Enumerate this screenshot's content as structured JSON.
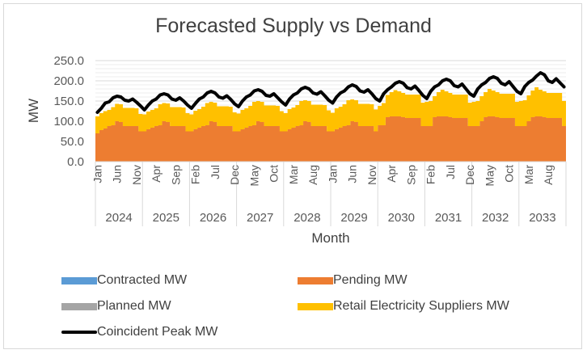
{
  "chart_data": {
    "type": "area",
    "title": "Forecasted Supply vs Demand",
    "xlabel": "Month",
    "ylabel": "MW",
    "ylim": [
      0,
      250
    ],
    "yticks": [
      "0.0",
      "50.0",
      "100.0",
      "150.0",
      "200.0",
      "250.0"
    ],
    "grid": true,
    "legend_position": "bottom",
    "years": [
      "2024",
      "2025",
      "2026",
      "2027",
      "2028",
      "2029",
      "2030",
      "2031",
      "2032",
      "2033"
    ],
    "month_tick_labels": [
      "Jan",
      "Jun",
      "Nov",
      "Apr",
      "Sep",
      "Feb",
      "Jul",
      "Dec",
      "May",
      "Oct",
      "Mar",
      "Aug",
      "Jan",
      "Jun",
      "Nov",
      "Apr",
      "Sep",
      "Feb",
      "Jul",
      "Dec",
      "May",
      "Oct",
      "Mar",
      "Aug"
    ],
    "month_tick_indices": [
      0,
      5,
      10,
      15,
      20,
      25,
      30,
      35,
      40,
      45,
      50,
      55,
      60,
      65,
      70,
      75,
      80,
      85,
      90,
      95,
      100,
      105,
      110,
      115
    ],
    "series": [
      {
        "name": "Contracted MW",
        "kind": "stacked-area",
        "color": "#5b9bd5",
        "values": [
          0,
          0,
          0,
          0,
          0,
          0,
          0,
          0,
          0,
          0,
          0,
          0,
          0,
          0,
          0,
          0,
          0,
          0,
          0,
          0,
          0,
          0,
          0,
          0,
          0,
          0,
          0,
          0,
          0,
          0,
          0,
          0,
          0,
          0,
          0,
          0,
          0,
          0,
          0,
          0,
          0,
          0,
          0,
          0,
          0,
          0,
          0,
          0,
          0,
          0,
          0,
          0,
          0,
          0,
          0,
          0,
          0,
          0,
          0,
          0,
          0,
          0,
          0,
          0,
          0,
          0,
          0,
          0,
          0,
          0,
          0,
          0,
          0,
          0,
          0,
          0,
          0,
          0,
          0,
          0,
          0,
          0,
          0,
          0,
          0,
          0,
          0,
          0,
          0,
          0,
          0,
          0,
          0,
          0,
          0,
          0,
          0,
          0,
          0,
          0,
          0,
          0,
          0,
          0,
          0,
          0,
          0,
          0,
          0,
          0,
          0,
          0,
          0,
          0,
          0,
          0,
          0,
          0,
          0,
          0
        ]
      },
      {
        "name": "Pending MW",
        "kind": "stacked-area",
        "color": "#ed7d31",
        "values": [
          70,
          78,
          82,
          88,
          90,
          100,
          98,
          88,
          88,
          88,
          88,
          75,
          75,
          80,
          84,
          88,
          90,
          100,
          98,
          88,
          88,
          88,
          88,
          75,
          75,
          80,
          84,
          88,
          90,
          100,
          98,
          88,
          88,
          88,
          88,
          75,
          75,
          80,
          84,
          88,
          90,
          100,
          98,
          88,
          88,
          88,
          88,
          75,
          75,
          80,
          84,
          88,
          90,
          100,
          98,
          88,
          88,
          88,
          88,
          75,
          75,
          80,
          84,
          88,
          90,
          100,
          98,
          88,
          88,
          88,
          88,
          75,
          90,
          90,
          110,
          112,
          112,
          112,
          110,
          108,
          108,
          108,
          108,
          88,
          88,
          88,
          110,
          112,
          112,
          112,
          110,
          108,
          108,
          108,
          108,
          88,
          88,
          88,
          100,
          110,
          112,
          112,
          110,
          108,
          108,
          108,
          108,
          88,
          88,
          88,
          100,
          110,
          112,
          112,
          110,
          108,
          108,
          108,
          108,
          88
        ]
      },
      {
        "name": "Planned MW",
        "kind": "stacked-area",
        "color": "#a5a5a5",
        "values": [
          0,
          0,
          0,
          0,
          0,
          0,
          0,
          0,
          0,
          0,
          0,
          0,
          0,
          0,
          0,
          0,
          0,
          0,
          0,
          0,
          0,
          0,
          0,
          0,
          0,
          0,
          0,
          0,
          0,
          0,
          0,
          0,
          0,
          0,
          0,
          0,
          0,
          0,
          0,
          0,
          0,
          0,
          0,
          0,
          0,
          0,
          0,
          0,
          0,
          0,
          0,
          0,
          0,
          0,
          0,
          0,
          0,
          0,
          0,
          0,
          0,
          0,
          0,
          0,
          0,
          0,
          0,
          0,
          0,
          0,
          0,
          0,
          0,
          0,
          0,
          0,
          0,
          0,
          0,
          0,
          0,
          0,
          0,
          0,
          0,
          0,
          0,
          0,
          0,
          0,
          0,
          0,
          0,
          0,
          0,
          0,
          0,
          0,
          0,
          0,
          0,
          0,
          0,
          0,
          0,
          0,
          0,
          0,
          0,
          0,
          0,
          0,
          0,
          0,
          0,
          0,
          0,
          0,
          0,
          0
        ]
      },
      {
        "name": "Retail Electricity Suppliers MW",
        "kind": "stacked-area",
        "color": "#ffc000",
        "values": [
          42,
          42,
          43,
          40,
          45,
          43,
          44,
          45,
          45,
          45,
          44,
          43,
          42,
          44,
          44,
          44,
          52,
          45,
          46,
          47,
          47,
          47,
          46,
          45,
          42,
          46,
          46,
          48,
          55,
          48,
          48,
          49,
          49,
          49,
          48,
          47,
          44,
          48,
          48,
          50,
          58,
          50,
          50,
          51,
          51,
          51,
          50,
          50,
          45,
          50,
          50,
          52,
          60,
          52,
          52,
          53,
          53,
          53,
          52,
          52,
          46,
          52,
          52,
          54,
          62,
          54,
          54,
          55,
          55,
          55,
          54,
          54,
          48,
          55,
          55,
          60,
          65,
          62,
          60,
          58,
          58,
          58,
          58,
          58,
          60,
          62,
          52,
          60,
          66,
          62,
          60,
          58,
          58,
          58,
          58,
          58,
          60,
          62,
          62,
          62,
          68,
          64,
          62,
          60,
          60,
          60,
          60,
          60,
          62,
          64,
          64,
          66,
          72,
          66,
          64,
          62,
          62,
          62,
          62,
          62
        ]
      },
      {
        "name": "Coincident Peak MW",
        "kind": "line",
        "color": "#000000",
        "values": [
          122,
          132,
          145,
          148,
          158,
          162,
          160,
          152,
          150,
          155,
          147,
          138,
          128,
          140,
          150,
          155,
          165,
          168,
          165,
          155,
          152,
          158,
          150,
          140,
          132,
          144,
          155,
          160,
          170,
          174,
          170,
          160,
          157,
          163,
          154,
          143,
          136,
          150,
          160,
          165,
          175,
          178,
          174,
          164,
          162,
          168,
          158,
          148,
          140,
          155,
          165,
          170,
          180,
          184,
          180,
          170,
          167,
          173,
          163,
          152,
          145,
          160,
          170,
          175,
          185,
          190,
          186,
          175,
          172,
          178,
          168,
          156,
          150,
          168,
          178,
          185,
          194,
          198,
          194,
          183,
          180,
          187,
          176,
          164,
          156,
          174,
          185,
          190,
          200,
          204,
          200,
          188,
          185,
          192,
          180,
          168,
          162,
          180,
          190,
          196,
          206,
          210,
          206,
          194,
          190,
          198,
          186,
          174,
          168,
          186,
          196,
          202,
          212,
          220,
          215,
          200,
          196,
          205,
          195,
          185
        ]
      }
    ]
  },
  "legend": {
    "items": [
      {
        "label": "Contracted MW",
        "color": "#5b9bd5",
        "kind": "area"
      },
      {
        "label": "Pending MW",
        "color": "#ed7d31",
        "kind": "area"
      },
      {
        "label": "Planned MW",
        "color": "#a5a5a5",
        "kind": "area"
      },
      {
        "label": "Retail Electricity Suppliers MW",
        "color": "#ffc000",
        "kind": "area"
      },
      {
        "label": "Coincident Peak MW",
        "color": "#000000",
        "kind": "line"
      }
    ]
  }
}
